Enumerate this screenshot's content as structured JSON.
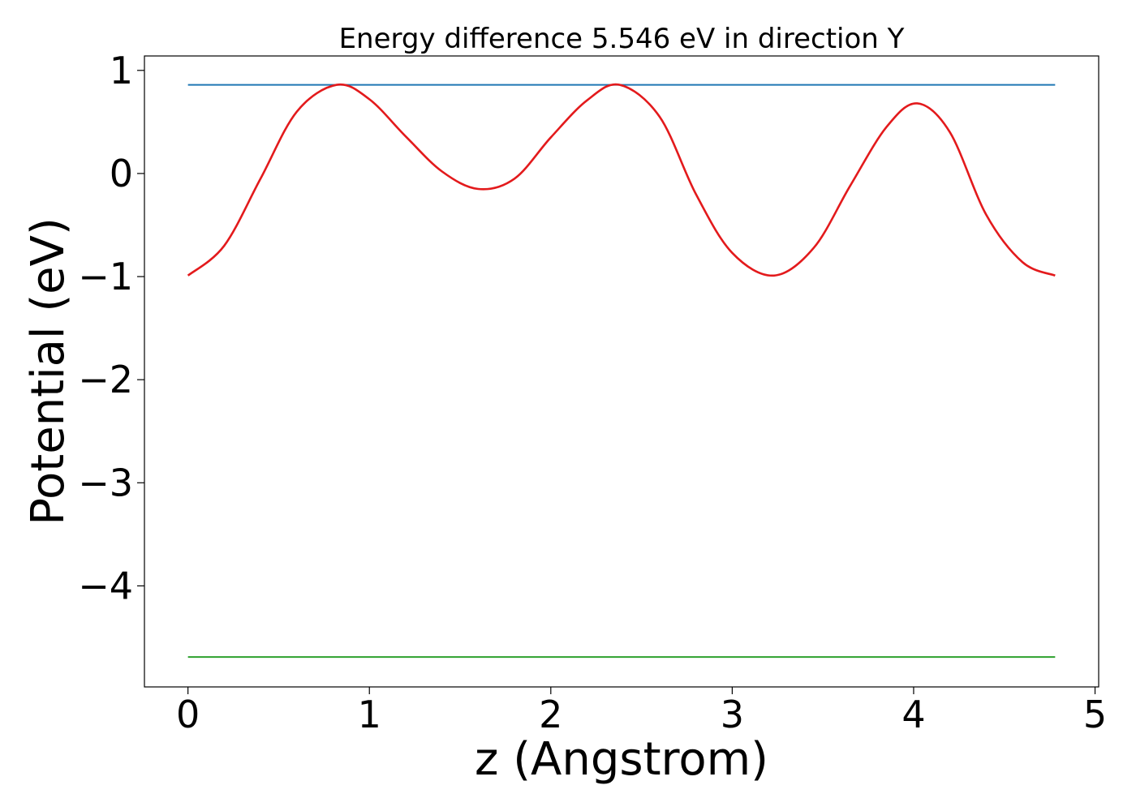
{
  "chart_data": {
    "type": "line",
    "title": "Energy difference 5.546 eV in direction Y",
    "xlabel": "z (Angstrom)",
    "ylabel": "Potential (eV)",
    "xlim": [
      -0.24,
      5.02
    ],
    "ylim": [
      -4.98,
      1.14
    ],
    "xticks": [
      0,
      1,
      2,
      3,
      4,
      5
    ],
    "xtick_labels": [
      "0",
      "1",
      "2",
      "3",
      "4",
      "5"
    ],
    "yticks": [
      1,
      0,
      -1,
      -2,
      -3,
      -4
    ],
    "ytick_labels": [
      "1",
      "0",
      "−1",
      "−2",
      "−3",
      "−4"
    ],
    "grid": false,
    "legend": "none",
    "series": [
      {
        "color": "#1f77b4",
        "x": [
          0,
          4.78
        ],
        "y": [
          0.86,
          0.86
        ]
      },
      {
        "color": "#2ca02c",
        "x": [
          0,
          4.78
        ],
        "y": [
          -4.69,
          -4.69
        ]
      },
      {
        "color": "#e31a1c",
        "x": [
          0,
          0.2,
          0.4,
          0.6,
          0.82,
          1.0,
          1.2,
          1.4,
          1.6,
          1.8,
          2.0,
          2.2,
          2.38,
          2.6,
          2.8,
          3.0,
          3.23,
          3.45,
          3.65,
          3.85,
          4.02,
          4.2,
          4.4,
          4.6,
          4.78
        ],
        "y": [
          -0.99,
          -0.7,
          -0.05,
          0.6,
          0.86,
          0.72,
          0.36,
          0.02,
          -0.15,
          -0.05,
          0.35,
          0.71,
          0.86,
          0.55,
          -0.2,
          -0.77,
          -0.99,
          -0.72,
          -0.12,
          0.45,
          0.68,
          0.4,
          -0.4,
          -0.86,
          -0.99
        ]
      }
    ]
  }
}
